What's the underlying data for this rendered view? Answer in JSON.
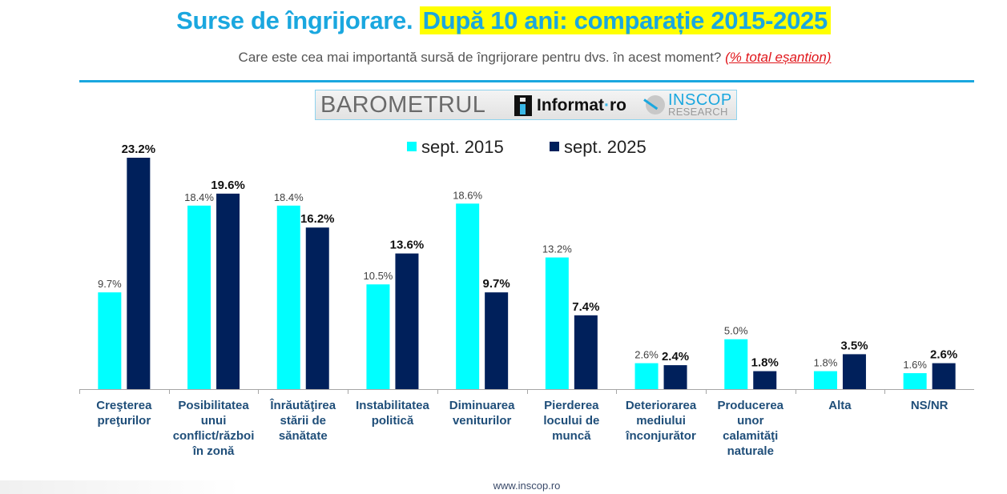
{
  "title": {
    "main": "Surse de îngrijorare.",
    "highlight": "După 10 ani: comparație 2015-2025"
  },
  "subtitle": {
    "question": "Care este cea mai importantă sursă de îngrijorare pentru dvs. în acest moment?",
    "note": "(% total eșantion)"
  },
  "logo": {
    "barometru": "BAROMETRUL",
    "informat_a": "Informat",
    "informat_dot": "·",
    "informat_b": "ro",
    "inscop_top": "INSCOP",
    "inscop_bottom": "RESEARCH"
  },
  "colors": {
    "title": "#1aa7df",
    "highlight": "#ffff00",
    "sept2015": "#00ffff",
    "sept2025": "#00205b",
    "category_label": "#1f4e79",
    "note": "#e0161b"
  },
  "footer": "www.inscop.ro",
  "chart_data": {
    "type": "bar",
    "title": "Surse de îngrijorare. După 10 ani: comparație 2015-2025",
    "xlabel": "",
    "ylabel": "% total eșantion",
    "ylim": [
      0,
      25
    ],
    "grid": false,
    "legend_position": "top-center",
    "categories": [
      "Creşterea preţurilor",
      "Posibilitatea unui conflict/război în zonă",
      "Înrăutăţirea stării de sănătate",
      "Instabilitatea politică",
      "Diminuarea veniturilor",
      "Pierderea locului de muncă",
      "Deteriorarea mediului înconjurător",
      "Producerea unor calamităţi naturale",
      "Alta",
      "NS/NR"
    ],
    "category_lines": [
      [
        "Creşterea",
        "preţurilor"
      ],
      [
        "Posibilitatea",
        "unui",
        "conflict/război",
        "în zonă"
      ],
      [
        "Înrăutăţirea",
        "stării de",
        "sănătate"
      ],
      [
        "Instabilitatea",
        "politică"
      ],
      [
        "Diminuarea",
        "veniturilor"
      ],
      [
        "Pierderea",
        "locului de",
        "muncă"
      ],
      [
        "Deteriorarea",
        "mediului",
        "înconjurător"
      ],
      [
        "Producerea",
        "unor",
        "calamităţi",
        "naturale"
      ],
      [
        "Alta"
      ],
      [
        "NS/NR"
      ]
    ],
    "series": [
      {
        "name": "sept. 2015",
        "values": [
          9.7,
          18.4,
          18.4,
          10.5,
          18.6,
          13.2,
          2.6,
          5.0,
          1.8,
          1.6
        ],
        "labels": [
          "9.7%",
          "18.4%",
          "18.4%",
          "10.5%",
          "18.6%",
          "13.2%",
          "2.6%",
          "5.0%",
          "1.8%",
          "1.6%"
        ]
      },
      {
        "name": "sept. 2025",
        "values": [
          23.2,
          19.6,
          16.2,
          13.6,
          9.7,
          7.4,
          2.4,
          1.8,
          3.5,
          2.6
        ],
        "labels": [
          "23.2%",
          "19.6%",
          "16.2%",
          "13.6%",
          "9.7%",
          "7.4%",
          "2.4%",
          "1.8%",
          "3.5%",
          "2.6%"
        ]
      }
    ]
  }
}
